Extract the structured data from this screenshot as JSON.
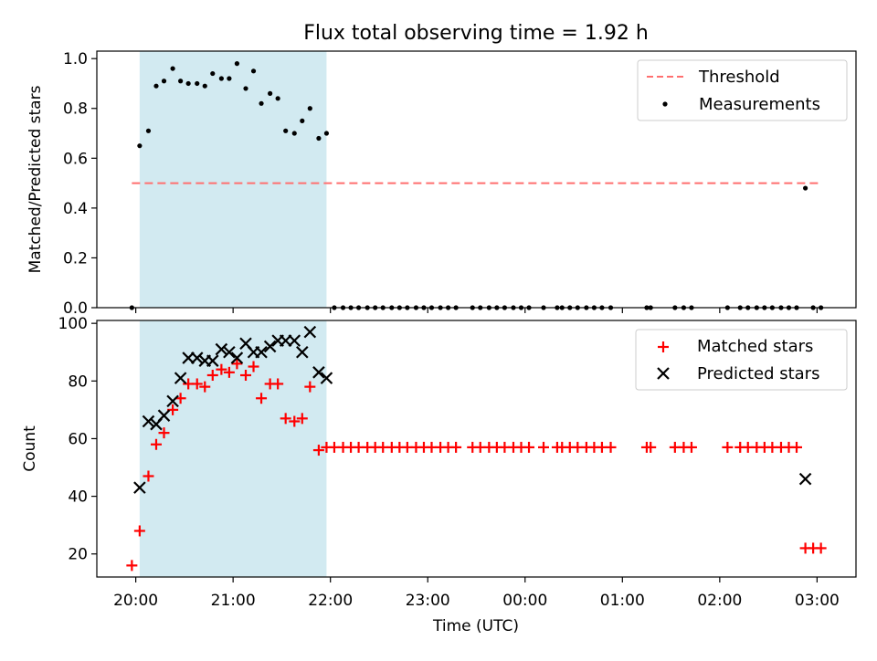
{
  "figure": {
    "title": "Flux total observing time = 1.92 h",
    "xlabel": "Time (UTC)"
  },
  "colors": {
    "shade": "#add8e6",
    "threshold": "#ff6f6f",
    "measurements": "#000000",
    "matched": "#ff0000",
    "predicted": "#000000"
  },
  "chart_data": [
    {
      "type": "scatter",
      "ylabel": "Matched/Predicted stars",
      "x_unit": "hours after 20:00 UTC",
      "xlim": [
        -0.4,
        7.4
      ],
      "ylim": [
        0,
        1.03
      ],
      "x_ticks": [
        0,
        1,
        2,
        3,
        4,
        5,
        6,
        7
      ],
      "y_ticks": [
        0.0,
        0.2,
        0.4,
        0.6,
        0.8,
        1.0
      ],
      "y_tick_labels": [
        "0.0",
        "0.2",
        "0.4",
        "0.6",
        "0.8",
        "1.0"
      ],
      "shaded_span": [
        0.04,
        1.96
      ],
      "threshold": {
        "name": "Threshold",
        "value": 0.5,
        "x_range": [
          -0.04,
          7.04
        ]
      },
      "series": [
        {
          "name": "Measurements",
          "x": [
            -0.04,
            0.04,
            0.13,
            0.21,
            0.29,
            0.38,
            0.46,
            0.54,
            0.63,
            0.71,
            0.79,
            0.88,
            0.96,
            1.04,
            1.13,
            1.21,
            1.29,
            1.38,
            1.46,
            1.54,
            1.63,
            1.71,
            1.79,
            1.88,
            1.96,
            2.04,
            2.13,
            2.21,
            2.29,
            2.38,
            2.46,
            2.54,
            2.63,
            2.71,
            2.79,
            2.88,
            2.96,
            3.04,
            3.13,
            3.21,
            3.29,
            3.46,
            3.54,
            3.63,
            3.71,
            3.79,
            3.88,
            3.96,
            4.04,
            4.19,
            4.33,
            4.38,
            4.46,
            4.54,
            4.63,
            4.71,
            4.79,
            4.88,
            5.25,
            5.29,
            5.54,
            5.63,
            5.71,
            6.08,
            6.21,
            6.29,
            6.38,
            6.46,
            6.54,
            6.63,
            6.71,
            6.79,
            6.88,
            6.96,
            7.04
          ],
          "y": [
            0,
            0.65,
            0.71,
            0.89,
            0.91,
            0.96,
            0.91,
            0.9,
            0.9,
            0.89,
            0.94,
            0.92,
            0.92,
            0.98,
            0.88,
            0.95,
            0.82,
            0.86,
            0.84,
            0.71,
            0.7,
            0.75,
            0.8,
            0.68,
            0.7,
            0,
            0,
            0,
            0,
            0,
            0,
            0,
            0,
            0,
            0,
            0,
            0,
            0,
            0,
            0,
            0,
            0,
            0,
            0,
            0,
            0,
            0,
            0,
            0,
            0,
            0,
            0,
            0,
            0,
            0,
            0,
            0,
            0,
            0,
            0,
            0,
            0,
            0,
            0,
            0,
            0,
            0,
            0,
            0,
            0,
            0,
            0,
            0.48,
            0,
            0
          ]
        }
      ],
      "legend": "top-right"
    },
    {
      "type": "scatter",
      "ylabel": "Count",
      "x_unit": "hours after 20:00 UTC",
      "xlim": [
        -0.4,
        7.4
      ],
      "ylim": [
        12,
        101
      ],
      "x_ticks": [
        0,
        1,
        2,
        3,
        4,
        5,
        6,
        7
      ],
      "x_tick_labels": [
        "20:00",
        "21:00",
        "22:00",
        "23:00",
        "00:00",
        "01:00",
        "02:00",
        "03:00"
      ],
      "y_ticks": [
        20,
        40,
        60,
        80,
        100
      ],
      "y_tick_labels": [
        "20",
        "40",
        "60",
        "80",
        "100"
      ],
      "shaded_span": [
        0.04,
        1.96
      ],
      "series": [
        {
          "name": "Matched stars",
          "marker": "plus",
          "x": [
            -0.04,
            0.04,
            0.13,
            0.21,
            0.29,
            0.38,
            0.46,
            0.54,
            0.63,
            0.71,
            0.79,
            0.88,
            0.96,
            1.04,
            1.13,
            1.21,
            1.29,
            1.38,
            1.46,
            1.54,
            1.63,
            1.71,
            1.79,
            1.88,
            1.96,
            2.04,
            2.13,
            2.21,
            2.29,
            2.38,
            2.46,
            2.54,
            2.63,
            2.71,
            2.79,
            2.88,
            2.96,
            3.04,
            3.13,
            3.21,
            3.29,
            3.46,
            3.54,
            3.63,
            3.71,
            3.79,
            3.88,
            3.96,
            4.04,
            4.19,
            4.33,
            4.38,
            4.46,
            4.54,
            4.63,
            4.71,
            4.79,
            4.88,
            5.25,
            5.29,
            5.54,
            5.63,
            5.71,
            6.08,
            6.21,
            6.29,
            6.38,
            6.46,
            6.54,
            6.63,
            6.71,
            6.79,
            6.88,
            6.96,
            7.04
          ],
          "y": [
            16,
            28,
            47,
            58,
            62,
            70,
            74,
            79,
            79,
            78,
            82,
            84,
            83,
            86,
            82,
            85,
            74,
            79,
            79,
            67,
            66,
            67,
            78,
            56,
            57,
            57,
            57,
            57,
            57,
            57,
            57,
            57,
            57,
            57,
            57,
            57,
            57,
            57,
            57,
            57,
            57,
            57,
            57,
            57,
            57,
            57,
            57,
            57,
            57,
            57,
            57,
            57,
            57,
            57,
            57,
            57,
            57,
            57,
            57,
            57,
            57,
            57,
            57,
            57,
            57,
            57,
            57,
            57,
            57,
            57,
            57,
            57,
            22,
            22,
            22
          ]
        },
        {
          "name": "Predicted stars",
          "marker": "x",
          "x": [
            0.04,
            0.13,
            0.21,
            0.29,
            0.38,
            0.46,
            0.54,
            0.63,
            0.71,
            0.79,
            0.88,
            0.96,
            1.04,
            1.13,
            1.21,
            1.29,
            1.38,
            1.46,
            1.54,
            1.63,
            1.71,
            1.79,
            1.88,
            1.96,
            6.88
          ],
          "y": [
            43,
            66,
            65,
            68,
            73,
            81,
            88,
            88,
            87,
            87,
            91,
            90,
            88,
            93,
            90,
            90,
            92,
            94,
            94,
            94,
            90,
            97,
            83,
            81,
            46
          ]
        }
      ],
      "legend": "top-right"
    }
  ]
}
